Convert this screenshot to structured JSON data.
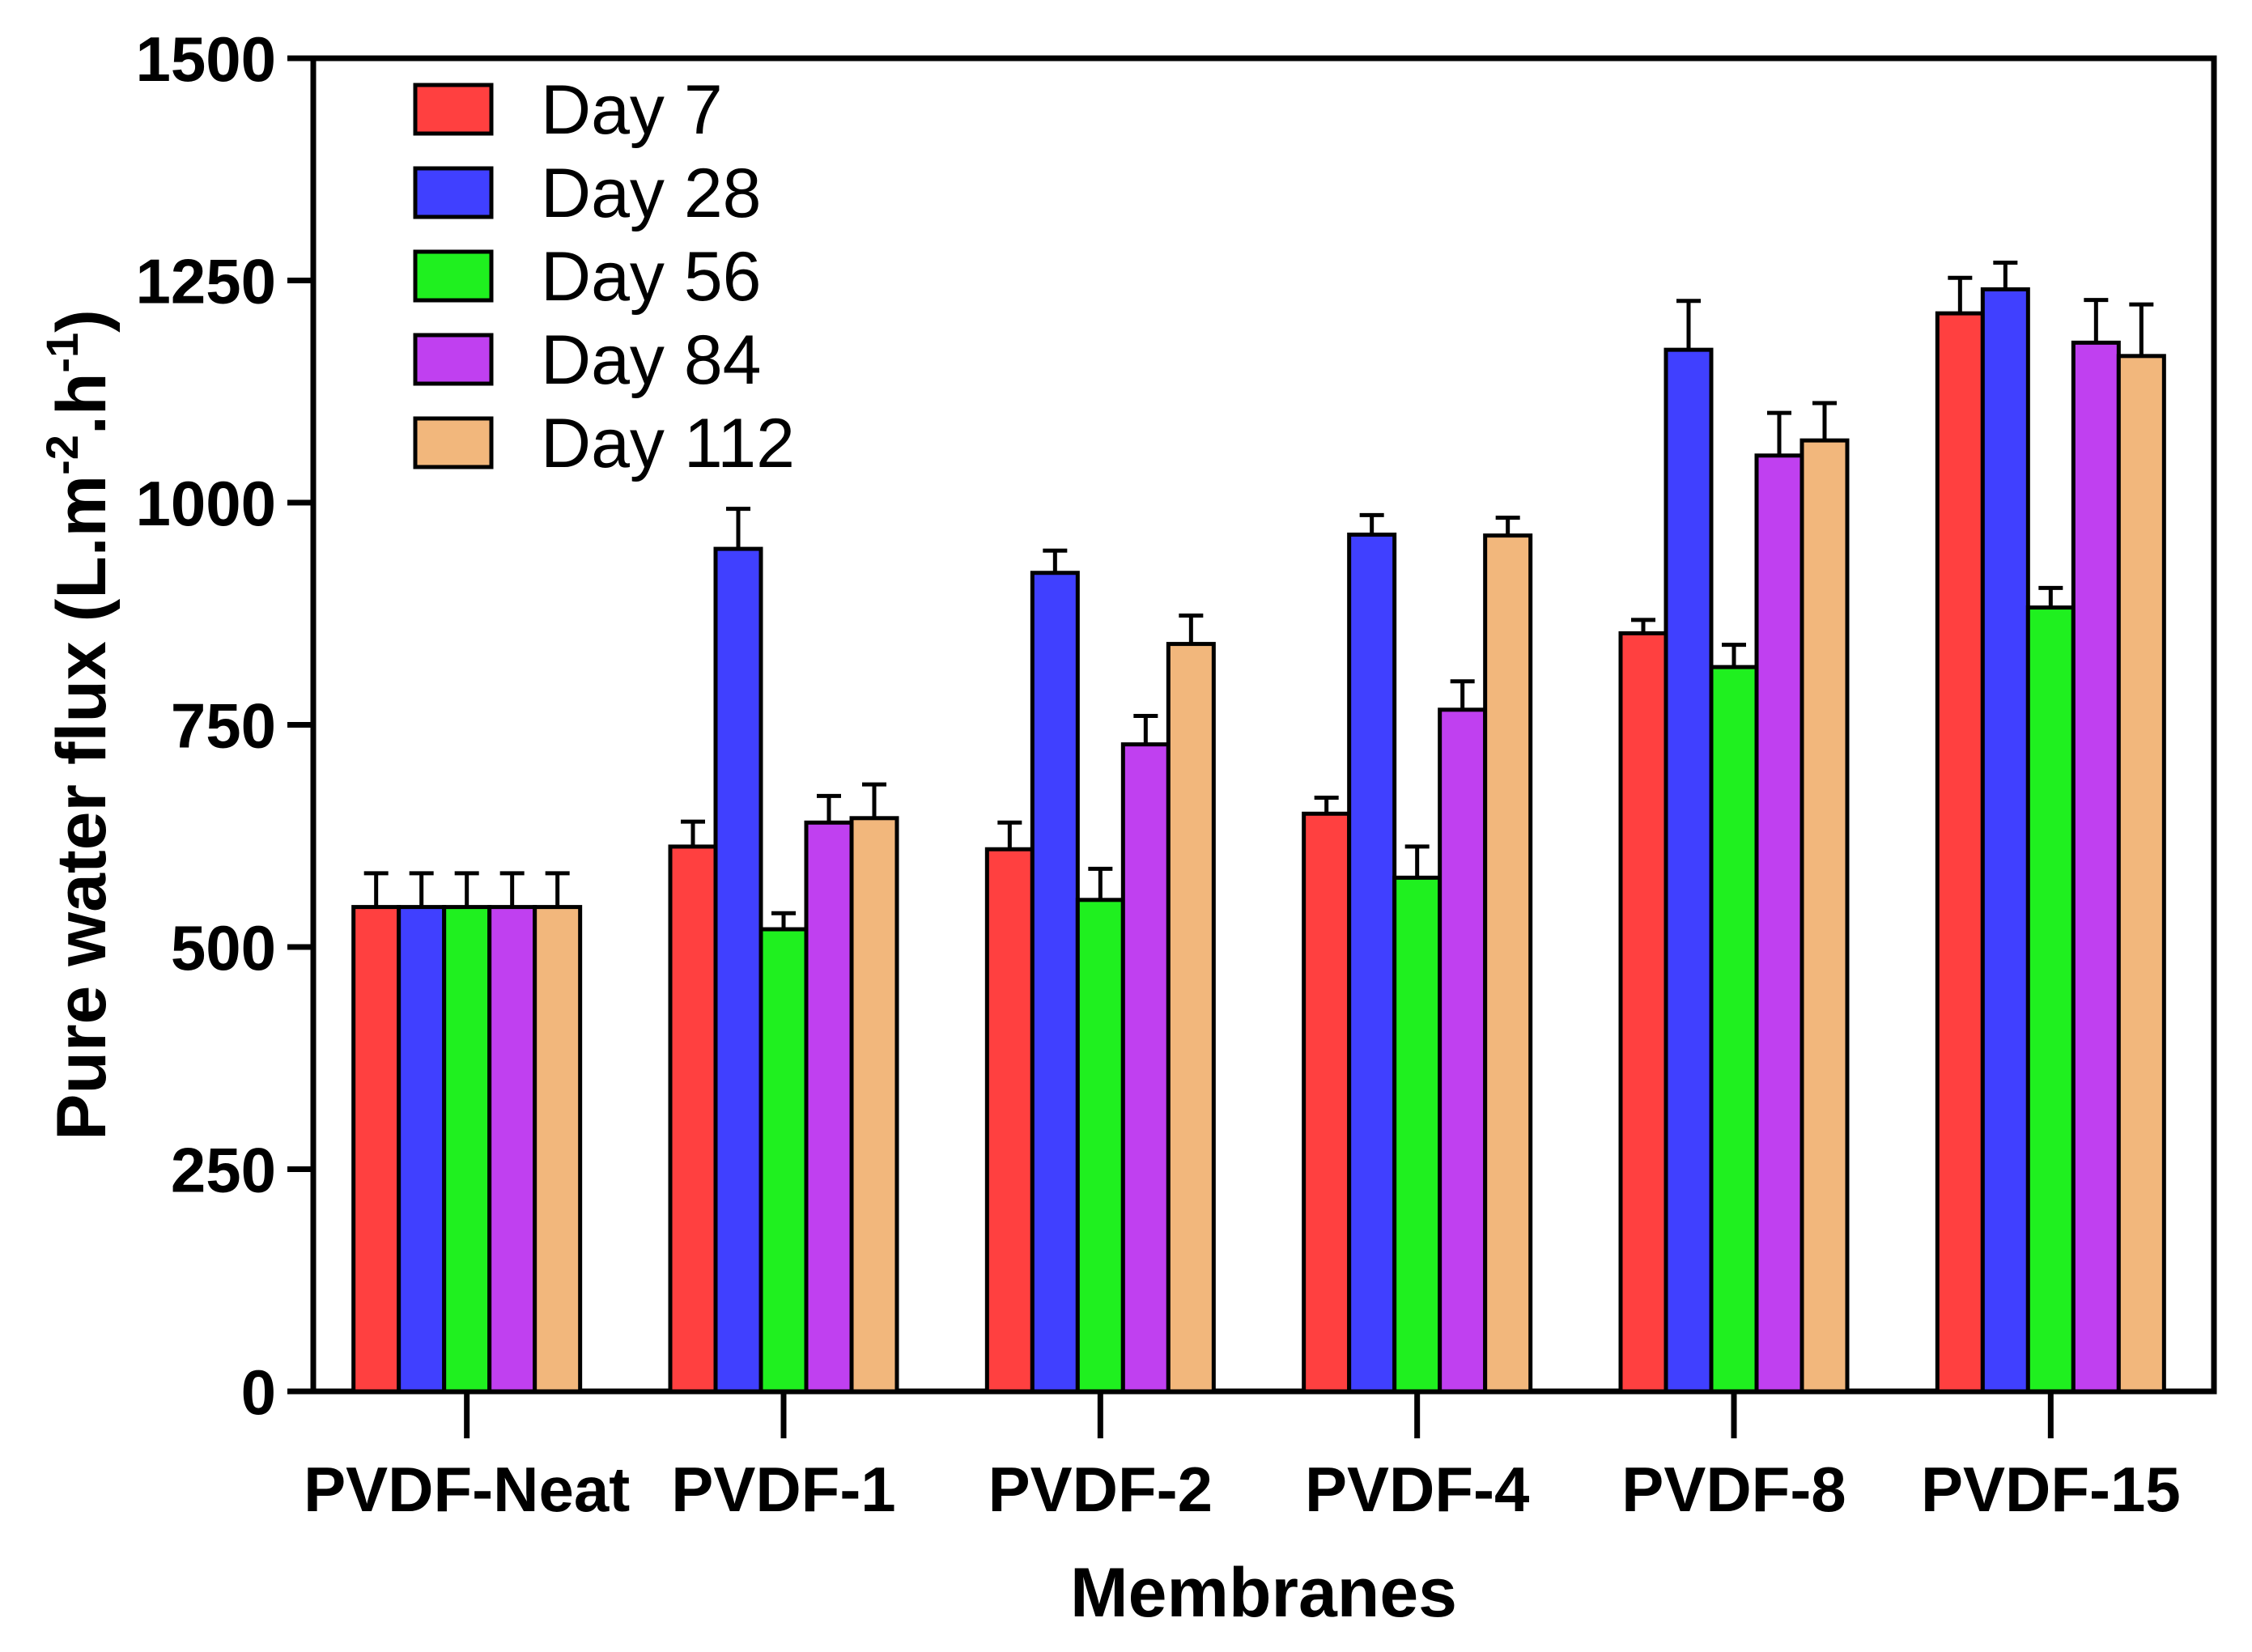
{
  "chart_data": {
    "type": "bar",
    "title": "",
    "xlabel": "Membranes",
    "ylabel": "Pure water flux (L.m-2.h-1)",
    "ylabel_parts": {
      "main": "Pure water flux (L.m",
      "exp1": "-2",
      "mid": ".h",
      "exp2": "-1",
      "end": ")"
    },
    "ylim": [
      0,
      1500
    ],
    "yticks": [
      0,
      250,
      500,
      750,
      1000,
      1250,
      1500
    ],
    "categories": [
      "PVDF-Neat",
      "PVDF-1",
      "PVDF-2",
      "PVDF-4",
      "PVDF-8",
      "PVDF-15"
    ],
    "legend_position": "top-left",
    "series": [
      {
        "name": "Day 7",
        "color": "#FF4040",
        "values": [
          545,
          613,
          610,
          650,
          853,
          1213
        ],
        "errors": [
          38,
          28,
          30,
          18,
          15,
          40
        ]
      },
      {
        "name": "Day 28",
        "color": "#4040FF",
        "values": [
          545,
          948,
          921,
          964,
          1172,
          1240
        ],
        "errors": [
          38,
          45,
          25,
          22,
          55,
          30
        ]
      },
      {
        "name": "Day 56",
        "color": "#1FF01F",
        "values": [
          545,
          520,
          553,
          578,
          815,
          882
        ],
        "errors": [
          38,
          18,
          35,
          35,
          25,
          22
        ]
      },
      {
        "name": "Day 84",
        "color": "#C040F0",
        "values": [
          545,
          640,
          728,
          767,
          1053,
          1180
        ],
        "errors": [
          38,
          30,
          32,
          32,
          48,
          48
        ]
      },
      {
        "name": "Day 112",
        "color": "#F2B77C",
        "values": [
          545,
          645,
          841,
          963,
          1070,
          1165
        ],
        "errors": [
          38,
          38,
          32,
          20,
          42,
          58
        ]
      }
    ]
  }
}
